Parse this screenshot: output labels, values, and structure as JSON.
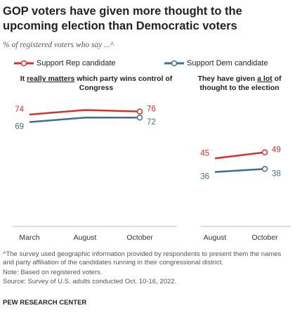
{
  "header": {
    "title": "GOP voters have given more thought to the upcoming election than Democratic voters",
    "subtitle": "% of registered voters who say ...^"
  },
  "legend": {
    "rep_label": "Support Rep candidate",
    "dem_label": "Support Dem candidate"
  },
  "colors": {
    "rep": "#d4322c",
    "dem": "#3e6f8c",
    "axis": "#bbbbbb"
  },
  "chart_data": [
    {
      "type": "line",
      "title_parts": [
        "It ",
        "really matters",
        " which party wins control of Congress"
      ],
      "x": [
        "March",
        "August",
        "October"
      ],
      "series": [
        {
          "name": "Support Rep candidate",
          "values": [
            74,
            77,
            76
          ]
        },
        {
          "name": "Support Dem candidate",
          "values": [
            69,
            72,
            72
          ]
        }
      ],
      "endpoint_labels": {
        "Support Rep candidate": [
          "74",
          "76"
        ],
        "Support Dem candidate": [
          "69",
          "72"
        ]
      }
    },
    {
      "type": "line",
      "title_parts": [
        "They have given ",
        "a lot",
        " of thought to the election"
      ],
      "x": [
        "August",
        "October"
      ],
      "series": [
        {
          "name": "Support Rep candidate",
          "values": [
            45,
            49
          ]
        },
        {
          "name": "Support Dem candidate",
          "values": [
            36,
            38
          ]
        }
      ],
      "endpoint_labels": {
        "Support Rep candidate": [
          "45",
          "49"
        ],
        "Support Dem candidate": [
          "36",
          "38"
        ]
      }
    }
  ],
  "footnotes": {
    "note1": "^The survey used geographic information provided by respondents to present them the names and party affiliation of the candidates running in their congressional district.",
    "note2": "Note: Based on registered voters.",
    "source": "Source: Survey of U.S. adults conducted Oct. 10-16, 2022.",
    "brand": "PEW RESEARCH CENTER"
  }
}
